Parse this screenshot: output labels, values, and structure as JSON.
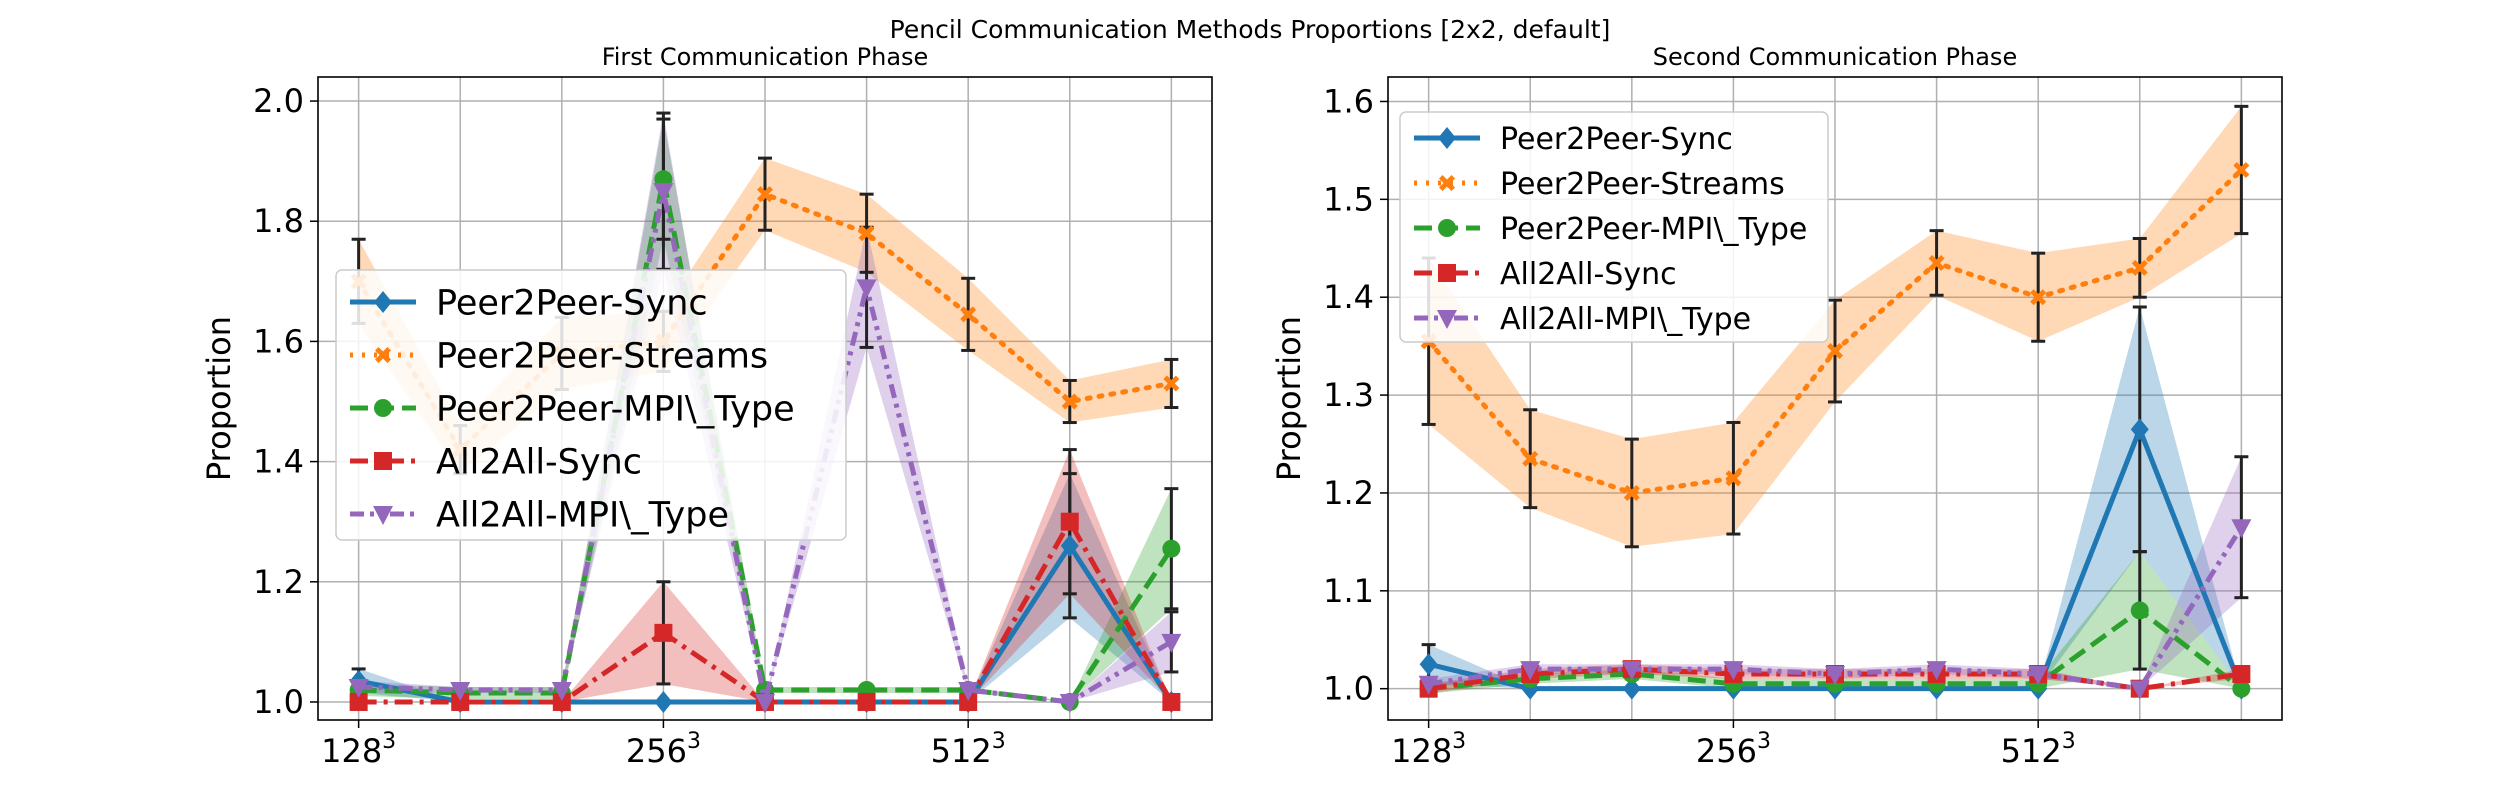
{
  "suptitle": "Pencil Communication Methods Proportions [2x2, default]",
  "styles": {
    "Peer2Peer-Sync": {
      "color": "#1f77b4",
      "dash": "",
      "marker": "diamond"
    },
    "Peer2Peer-Streams": {
      "color": "#ff7f0e",
      "dash": "3 9",
      "marker": "x"
    },
    "Peer2Peer-MPI\\_Type": {
      "color": "#2ca02c",
      "dash": "18 8",
      "marker": "circle"
    },
    "All2All-Sync": {
      "color": "#d62728",
      "dash": "18 7 4 7",
      "marker": "square"
    },
    "All2All-MPI\\_Type": {
      "color": "#9467bd",
      "dash": "14 6 4 6 4 6",
      "marker": "triangle-down"
    }
  },
  "chart_data": [
    {
      "type": "line",
      "title": "First Communication Phase",
      "ylabel": "Proportion",
      "xlabel": "",
      "x": [
        0,
        1,
        2,
        3,
        4,
        5,
        6,
        7,
        8
      ],
      "xticks": [
        {
          "x": 0,
          "base": "128",
          "exp": "3"
        },
        {
          "x": 3,
          "base": "256",
          "exp": "3"
        },
        {
          "x": 6,
          "base": "512",
          "exp": "3"
        }
      ],
      "xlim": [
        -0.4,
        8.4
      ],
      "ylim": [
        0.97,
        2.04
      ],
      "yticks": [
        "1.0",
        "1.2",
        "1.4",
        "1.6",
        "1.8",
        "2.0"
      ],
      "grid": true,
      "legend": "center-left",
      "series": [
        {
          "name": "Peer2Peer-Sync",
          "values": [
            1.035,
            1.0,
            1.0,
            1.0,
            1.0,
            1.0,
            1.0,
            1.26,
            1.0
          ],
          "err": [
            0.02,
            0.0,
            0.0,
            0.0,
            0.0,
            0.0,
            0.0,
            0.12,
            0.0
          ]
        },
        {
          "name": "Peer2Peer-Streams",
          "values": [
            1.7,
            1.42,
            1.58,
            1.6,
            1.845,
            1.78,
            1.645,
            1.5,
            1.53
          ],
          "err": [
            0.07,
            0.04,
            0.06,
            0.05,
            0.06,
            0.065,
            0.06,
            0.035,
            0.04
          ]
        },
        {
          "name": "Peer2Peer-MPI\\_Type",
          "values": [
            1.02,
            1.015,
            1.015,
            1.87,
            1.02,
            1.02,
            1.02,
            1.0,
            1.255
          ],
          "err": [
            0.01,
            0.01,
            0.01,
            0.1,
            0.005,
            0.005,
            0.005,
            0.0,
            0.1
          ]
        },
        {
          "name": "All2All-Sync",
          "values": [
            1.0,
            1.0,
            1.0,
            1.115,
            1.0,
            1.0,
            1.0,
            1.3,
            1.0
          ],
          "err": [
            0.0,
            0.0,
            0.0,
            0.085,
            0.0,
            0.0,
            0.0,
            0.12,
            0.0
          ]
        },
        {
          "name": "All2All-MPI\\_Type",
          "values": [
            1.025,
            1.02,
            1.02,
            1.85,
            1.0,
            1.69,
            1.02,
            1.0,
            1.1
          ],
          "err": [
            0.01,
            0.005,
            0.005,
            0.13,
            0.0,
            0.1,
            0.005,
            0.0,
            0.05
          ]
        }
      ]
    },
    {
      "type": "line",
      "title": "Second Communication Phase",
      "ylabel": "Proportion",
      "xlabel": "",
      "x": [
        0,
        1,
        2,
        3,
        4,
        5,
        6,
        7,
        8
      ],
      "xticks": [
        {
          "x": 0,
          "base": "128",
          "exp": "3"
        },
        {
          "x": 3,
          "base": "256",
          "exp": "3"
        },
        {
          "x": 6,
          "base": "512",
          "exp": "3"
        }
      ],
      "xlim": [
        -0.4,
        8.4
      ],
      "ylim": [
        0.968,
        1.625
      ],
      "yticks": [
        "1.0",
        "1.1",
        "1.2",
        "1.3",
        "1.4",
        "1.5",
        "1.6"
      ],
      "grid": true,
      "legend": "top-left",
      "series": [
        {
          "name": "Peer2Peer-Sync",
          "values": [
            1.025,
            1.0,
            1.0,
            1.0,
            1.0,
            1.0,
            1.0,
            1.265,
            1.0
          ],
          "err": [
            0.02,
            0.0,
            0.0,
            0.0,
            0.0,
            0.0,
            0.0,
            0.125,
            0.0
          ]
        },
        {
          "name": "Peer2Peer-Streams",
          "values": [
            1.355,
            1.235,
            1.2,
            1.215,
            1.345,
            1.435,
            1.4,
            1.43,
            1.53
          ],
          "err": [
            0.085,
            0.05,
            0.055,
            0.057,
            0.052,
            0.033,
            0.045,
            0.03,
            0.065
          ]
        },
        {
          "name": "Peer2Peer-MPI\\_Type",
          "values": [
            1.0,
            1.01,
            1.015,
            1.005,
            1.005,
            1.005,
            1.005,
            1.08,
            1.0
          ],
          "err": [
            0.005,
            0.005,
            0.005,
            0.005,
            0.005,
            0.005,
            0.005,
            0.06,
            0.0
          ]
        },
        {
          "name": "All2All-Sync",
          "values": [
            1.0,
            1.015,
            1.02,
            1.015,
            1.015,
            1.015,
            1.015,
            1.0,
            1.015
          ],
          "err": [
            0.005,
            0.005,
            0.005,
            0.005,
            0.005,
            0.005,
            0.005,
            0.0,
            0.005
          ]
        },
        {
          "name": "All2All-MPI\\_Type",
          "values": [
            1.005,
            1.02,
            1.02,
            1.02,
            1.015,
            1.02,
            1.015,
            1.0,
            1.165
          ],
          "err": [
            0.005,
            0.005,
            0.005,
            0.005,
            0.005,
            0.005,
            0.005,
            0.0,
            0.072
          ]
        }
      ]
    }
  ]
}
